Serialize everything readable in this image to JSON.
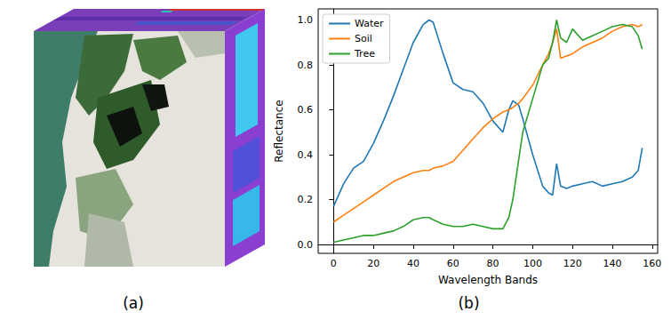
{
  "figure": {
    "panel_labels": [
      "(a)",
      "(b)"
    ]
  },
  "chart_data": {
    "type": "line",
    "x_label": "Wavelength Bands",
    "y_label": "Reflectance",
    "x": [
      0,
      5,
      10,
      15,
      20,
      25,
      30,
      35,
      40,
      45,
      48,
      50,
      55,
      60,
      65,
      70,
      75,
      80,
      85,
      88,
      90,
      93,
      95,
      100,
      105,
      108,
      110,
      112,
      114,
      117,
      120,
      125,
      130,
      135,
      140,
      145,
      150,
      153,
      155
    ],
    "series": [
      {
        "name": "Water",
        "color": "#1f77b4",
        "values": [
          0.17,
          0.27,
          0.34,
          0.37,
          0.45,
          0.55,
          0.66,
          0.78,
          0.9,
          0.98,
          1.0,
          0.99,
          0.85,
          0.72,
          0.69,
          0.68,
          0.63,
          0.55,
          0.5,
          0.6,
          0.64,
          0.62,
          0.56,
          0.4,
          0.26,
          0.23,
          0.22,
          0.36,
          0.26,
          0.25,
          0.26,
          0.27,
          0.28,
          0.26,
          0.27,
          0.28,
          0.3,
          0.33,
          0.43
        ]
      },
      {
        "name": "Soil",
        "color": "#ff7f0e",
        "values": [
          0.1,
          0.13,
          0.16,
          0.19,
          0.22,
          0.25,
          0.28,
          0.3,
          0.32,
          0.33,
          0.33,
          0.34,
          0.35,
          0.37,
          0.42,
          0.47,
          0.52,
          0.56,
          0.59,
          0.6,
          0.61,
          0.63,
          0.65,
          0.71,
          0.8,
          0.85,
          0.9,
          0.96,
          0.83,
          0.84,
          0.85,
          0.88,
          0.9,
          0.92,
          0.95,
          0.97,
          0.98,
          0.97,
          0.98
        ]
      },
      {
        "name": "Tree",
        "color": "#2ca02c",
        "values": [
          0.01,
          0.02,
          0.03,
          0.04,
          0.04,
          0.05,
          0.06,
          0.08,
          0.11,
          0.12,
          0.12,
          0.11,
          0.09,
          0.08,
          0.08,
          0.09,
          0.08,
          0.07,
          0.07,
          0.12,
          0.2,
          0.38,
          0.5,
          0.65,
          0.8,
          0.83,
          0.9,
          1.0,
          0.92,
          0.9,
          0.96,
          0.91,
          0.93,
          0.95,
          0.97,
          0.98,
          0.97,
          0.93,
          0.87
        ]
      }
    ],
    "xlim": [
      -7.75,
      162.75
    ],
    "xticks": [
      0,
      20,
      40,
      60,
      80,
      100,
      120,
      140,
      160
    ],
    "ylim": [
      -0.0395,
      1.0495
    ],
    "yticks": [
      {
        "value": 0,
        "label": "0.0"
      },
      {
        "value": 0.2,
        "label": "0.2"
      },
      {
        "value": 0.4,
        "label": "0.4"
      },
      {
        "value": 0.6,
        "label": "0.6"
      },
      {
        "value": 0.8,
        "label": "0.8"
      },
      {
        "value": 1.0,
        "label": "1.0"
      }
    ],
    "grid": false,
    "legend": "upper left",
    "marker": "none",
    "line_style": "solid"
  }
}
